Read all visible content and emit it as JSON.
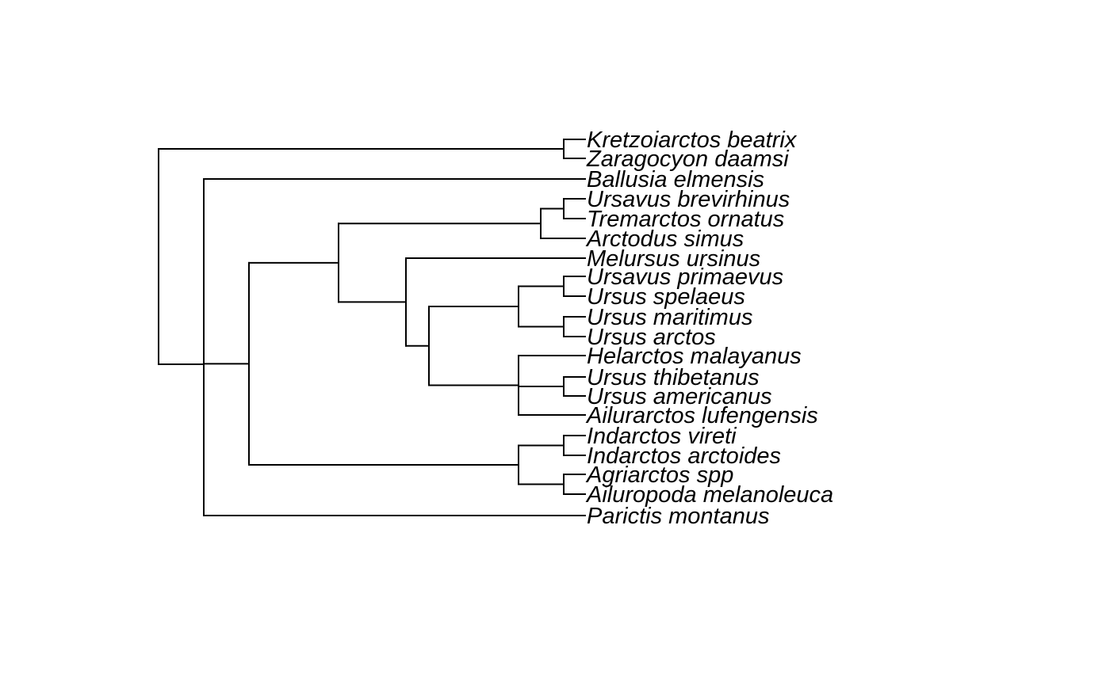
{
  "tree": {
    "tip_labels": [
      "Kretzoiarctos beatrix",
      "Zaragocyon daamsi",
      "Ballusia elmensis",
      "Ursavus brevirhinus",
      "Tremarctos ornatus",
      "Arctodus simus",
      "Melursus ursinus",
      "Ursavus primaevus",
      "Ursus spelaeus",
      "Ursus maritimus",
      "Ursus arctos",
      "Helarctos malayanus",
      "Ursus thibetanus",
      "Ursus americanus",
      "Ailurarctos lufengensis",
      "Indarctos vireti",
      "Indarctos arctoides",
      "Agriarctos spp",
      "Ailuropoda melanoleuca",
      "Parictis montanus"
    ],
    "newick": "((Kretzoiarctos beatrix,Zaragocyon daamsi),(Ballusia elmensis,((((Ursavus brevirhinus,Tremarctos ornatus),Arctodus simus),(Melursus ursinus,(((Ursavus primaevus,Ursus spelaeus),(Ursus maritimus,Ursus arctos)),(Helarctos malayanus,(Ursus thibetanus,Ursus americanus),Ailurarctos lufengensis)))),((Indarctos vireti,Indarctos arctoides),(Agriarctos spp,Ailuropoda melanoleuca))),Parictis montanus));"
  }
}
